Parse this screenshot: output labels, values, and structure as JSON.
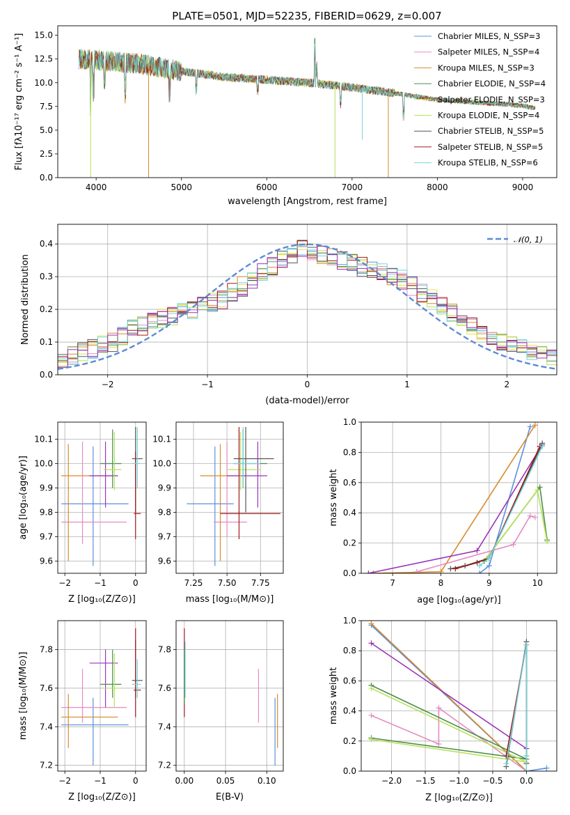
{
  "colors": {
    "chabrier_miles": "#5b8fde",
    "salpeter_miles": "#e58bc3",
    "kroupa_miles": "#d88a2c",
    "chabrier_elodie": "#4a8c4a",
    "salpeter_elodie": "#e0e24a",
    "kroupa_elodie": "#b8e05a",
    "chabrier_stelib": "#555555",
    "salpeter_stelib": "#a01818",
    "kroupa_stelib": "#6fd6da",
    "purple": "#9a33b8",
    "normal": "#5b8ad6"
  },
  "chart_data": [
    {
      "id": "spectrum",
      "type": "line",
      "title": "PLATE=0501, MJD=52235, FIBERID=0629, z=0.007",
      "xlabel": "wavelength [Angstrom, rest frame]",
      "ylabel": "Flux [fλ10⁻¹⁷ erg cm⁻² s⁻¹ A⁻¹]",
      "xlim": [
        3550,
        9400
      ],
      "ylim": [
        0,
        16
      ],
      "xticks": [
        "4000",
        "5000",
        "6000",
        "7000",
        "8000",
        "9000"
      ],
      "xtick_values": [
        4000,
        5000,
        6000,
        7000,
        8000,
        9000
      ],
      "yticks": [
        "0.0",
        "2.5",
        "5.0",
        "7.5",
        "10.0",
        "12.5",
        "15.0"
      ],
      "ytick_values": [
        0,
        2.5,
        5,
        7.5,
        10,
        12.5,
        15
      ],
      "continuum": {
        "x": [
          3800,
          4000,
          4500,
          5000,
          5500,
          6000,
          6500,
          7000,
          7500,
          8000,
          8500,
          9000,
          9150
        ],
        "y": [
          12.5,
          12.4,
          12.0,
          11.2,
          10.6,
          10.3,
          10.0,
          9.5,
          8.9,
          8.2,
          7.9,
          7.6,
          7.3
        ]
      },
      "legend": [
        "Chabrier MILES, N_SSP=3",
        "Salpeter MILES, N_SSP=4",
        "Kroupa MILES, N_SSP=3",
        "Chabrier ELODIE, N_SSP=4",
        "Salpeter ELODIE, N_SSP=3",
        "Kroupa ELODIE, N_SSP=4",
        "Chabrier STELIB, N_SSP=5",
        "Salpeter STELIB, N_SSP=5",
        "Kroupa STELIB, N_SSP=6"
      ],
      "legend_keys": [
        "chabrier_miles",
        "salpeter_miles",
        "kroupa_miles",
        "chabrier_elodie",
        "salpeter_elodie",
        "kroupa_elodie",
        "chabrier_stelib",
        "salpeter_stelib",
        "kroupa_stelib"
      ],
      "legend_placement": "top-right",
      "grid": false
    },
    {
      "id": "residuals",
      "type": "line",
      "xlabel": "(data-model)/error",
      "ylabel": "Normed distribution",
      "xlim": [
        -2.5,
        2.5
      ],
      "ylim": [
        0,
        0.46
      ],
      "xticks": [
        "−2",
        "−1",
        "0",
        "1",
        "2"
      ],
      "xtick_values": [
        -2,
        -1,
        0,
        1,
        2
      ],
      "yticks": [
        "0.0",
        "0.1",
        "0.2",
        "0.3",
        "0.4"
      ],
      "ytick_values": [
        0,
        0.1,
        0.2,
        0.3,
        0.4
      ],
      "normal_curve": {
        "name": "𝒩(0, 1)",
        "mean": 0,
        "sd": 1
      },
      "histogram_bins": {
        "start": -2.5,
        "width": 0.1
      },
      "histogram_profile": [
        0.04,
        0.06,
        0.07,
        0.08,
        0.09,
        0.1,
        0.12,
        0.14,
        0.15,
        0.16,
        0.17,
        0.18,
        0.19,
        0.2,
        0.21,
        0.22,
        0.23,
        0.25,
        0.27,
        0.29,
        0.31,
        0.33,
        0.35,
        0.37,
        0.39,
        0.38,
        0.37,
        0.36,
        0.35,
        0.34,
        0.33,
        0.32,
        0.31,
        0.3,
        0.29,
        0.27,
        0.25,
        0.23,
        0.21,
        0.19,
        0.17,
        0.15,
        0.13,
        0.11,
        0.1,
        0.09,
        0.08,
        0.07,
        0.06,
        0.05
      ],
      "grid": true,
      "legend_placement": "top-right"
    },
    {
      "id": "age_vs_Z",
      "type": "scatter",
      "xlabel": "Z [log₁₀(Z/Z⊙)]",
      "ylabel": "age  [log₁₀(age/yr)]",
      "xlim": [
        -2.2,
        0.3
      ],
      "ylim": [
        9.55,
        10.17
      ],
      "xticks": [
        "−2",
        "−1",
        "0"
      ],
      "xtick_values": [
        -2,
        -1,
        0
      ],
      "yticks": [
        "9.6",
        "9.7",
        "9.8",
        "9.9",
        "10.0",
        "10.1"
      ],
      "ytick_values": [
        9.6,
        9.7,
        9.8,
        9.9,
        10.0,
        10.1
      ],
      "points": [
        {
          "c": "chabrier_miles",
          "x": -1.2,
          "y": 9.835,
          "xe": [
            -2.1,
            -0.2
          ],
          "ye": [
            9.58,
            10.07
          ]
        },
        {
          "c": "salpeter_miles",
          "x": -1.5,
          "y": 9.76,
          "xe": [
            -2.1,
            -0.25
          ],
          "ye": [
            9.67,
            10.09
          ]
        },
        {
          "c": "kroupa_miles",
          "x": -1.9,
          "y": 9.95,
          "xe": [
            -2.1,
            -0.5
          ],
          "ye": [
            9.6,
            10.08
          ]
        },
        {
          "c": "purple",
          "x": -0.85,
          "y": 9.95,
          "xe": [
            -1.3,
            -0.5
          ],
          "ye": [
            9.82,
            10.09
          ]
        },
        {
          "c": "chabrier_elodie",
          "x": -0.65,
          "y": 10.0,
          "xe": [
            -1.0,
            -0.4
          ],
          "ye": [
            9.9,
            10.14
          ]
        },
        {
          "c": "kroupa_elodie",
          "x": -0.6,
          "y": 9.975,
          "xe": [
            -0.9,
            -0.4
          ],
          "ye": [
            9.89,
            10.13
          ]
        },
        {
          "c": "chabrier_stelib",
          "x": 0.0,
          "y": 10.02,
          "xe": [
            -0.1,
            0.2
          ],
          "ye": [
            9.8,
            10.15
          ]
        },
        {
          "c": "salpeter_stelib",
          "x": 0.0,
          "y": 9.795,
          "xe": [
            -0.05,
            0.15
          ],
          "ye": [
            9.69,
            10.05
          ]
        },
        {
          "c": "kroupa_stelib",
          "x": 0.05,
          "y": 10.0,
          "xe": [
            -0.1,
            0.15
          ],
          "ye": [
            9.9,
            10.15
          ]
        }
      ],
      "grid": true
    },
    {
      "id": "age_vs_mass",
      "type": "scatter",
      "xlabel": "mass [log₁₀(M/M⊙)]",
      "xlim": [
        7.12,
        7.92
      ],
      "ylim": [
        9.55,
        10.17
      ],
      "xticks": [
        "7.25",
        "7.50",
        "7.75"
      ],
      "xtick_values": [
        7.25,
        7.5,
        7.75
      ],
      "yticks": [
        "9.6",
        "9.7",
        "9.8",
        "9.9",
        "10.0",
        "10.1"
      ],
      "ytick_values": [
        9.6,
        9.7,
        9.8,
        9.9,
        10.0,
        10.1
      ],
      "points": [
        {
          "c": "chabrier_miles",
          "x": 7.41,
          "y": 9.835,
          "xe": [
            7.2,
            7.55
          ],
          "ye": [
            9.58,
            10.07
          ]
        },
        {
          "c": "salpeter_miles",
          "x": 7.5,
          "y": 9.76,
          "xe": [
            7.4,
            7.65
          ],
          "ye": [
            9.7,
            10.09
          ]
        },
        {
          "c": "kroupa_miles",
          "x": 7.45,
          "y": 9.95,
          "xe": [
            7.3,
            7.58
          ],
          "ye": [
            9.6,
            10.08
          ]
        },
        {
          "c": "purple",
          "x": 7.73,
          "y": 9.95,
          "xe": [
            7.5,
            7.8
          ],
          "ye": [
            9.82,
            10.09
          ]
        },
        {
          "c": "chabrier_elodie",
          "x": 7.62,
          "y": 10.0,
          "xe": [
            7.55,
            7.8
          ],
          "ye": [
            9.9,
            10.14
          ]
        },
        {
          "c": "kroupa_elodie",
          "x": 7.6,
          "y": 9.975,
          "xe": [
            7.5,
            7.75
          ],
          "ye": [
            9.89,
            10.13
          ]
        },
        {
          "c": "chabrier_stelib",
          "x": 7.64,
          "y": 10.02,
          "xe": [
            7.55,
            7.85
          ],
          "ye": [
            9.8,
            10.15
          ]
        },
        {
          "c": "salpeter_stelib",
          "x": 7.59,
          "y": 9.795,
          "xe": [
            7.45,
            7.9
          ],
          "ye": [
            9.69,
            10.15
          ]
        },
        {
          "c": "kroupa_stelib",
          "x": 7.62,
          "y": 10.0,
          "xe": [
            7.55,
            7.75
          ],
          "ye": [
            9.9,
            10.15
          ]
        }
      ],
      "grid": true
    },
    {
      "id": "weight_vs_age",
      "type": "line",
      "xlabel": "age  [log₁₀(age/yr)]",
      "ylabel": "mass weight",
      "xlim": [
        6.35,
        10.4
      ],
      "ylim": [
        0,
        1
      ],
      "xticks": [
        "7",
        "8",
        "9",
        "10"
      ],
      "xtick_values": [
        7,
        8,
        9,
        10
      ],
      "yticks": [
        "0.0",
        "0.2",
        "0.4",
        "0.6",
        "0.8",
        "1.0"
      ],
      "ytick_values": [
        0,
        0.2,
        0.4,
        0.6,
        0.8,
        1.0
      ],
      "series": [
        {
          "c": "chabrier_miles",
          "x": [
            8.8,
            9.0,
            9.85
          ],
          "y": [
            0.0,
            0.05,
            0.97
          ]
        },
        {
          "c": "kroupa_miles",
          "x": [
            6.6,
            8.0,
            9.95
          ],
          "y": [
            0.0,
            0.01,
            0.98
          ]
        },
        {
          "c": "salpeter_miles",
          "x": [
            7.5,
            9.5,
            9.85,
            9.95
          ],
          "y": [
            0.01,
            0.19,
            0.38,
            0.37
          ]
        },
        {
          "c": "purple",
          "x": [
            6.5,
            8.75,
            10.1
          ],
          "y": [
            0.0,
            0.15,
            0.85
          ]
        },
        {
          "c": "chabrier_elodie",
          "x": [
            8.9,
            10.05,
            10.2
          ],
          "y": [
            0.08,
            0.57,
            0.22
          ]
        },
        {
          "c": "kroupa_elodie",
          "x": [
            8.95,
            10.0,
            10.2
          ],
          "y": [
            0.1,
            0.55,
            0.21
          ]
        },
        {
          "c": "chabrier_stelib",
          "x": [
            8.2,
            8.5,
            9.0,
            10.1
          ],
          "y": [
            0.03,
            0.05,
            0.1,
            0.86
          ]
        },
        {
          "c": "salpeter_stelib",
          "x": [
            8.3,
            8.75,
            9.0,
            10.05
          ],
          "y": [
            0.03,
            0.07,
            0.1,
            0.84
          ]
        },
        {
          "c": "kroupa_stelib",
          "x": [
            8.8,
            9.0,
            10.1
          ],
          "y": [
            0.05,
            0.1,
            0.84
          ]
        }
      ],
      "grid": true
    },
    {
      "id": "mass_vs_Z",
      "type": "scatter",
      "xlabel": "Z [log₁₀(Z/Z⊙)]",
      "ylabel": "mass [log₁₀(M/M⊙)]",
      "xlim": [
        -2.2,
        0.3
      ],
      "ylim": [
        7.17,
        7.95
      ],
      "xticks": [
        "−2",
        "−1",
        "0"
      ],
      "xtick_values": [
        -2,
        -1,
        0
      ],
      "yticks": [
        "7.2",
        "7.4",
        "7.6",
        "7.8"
      ],
      "ytick_values": [
        7.2,
        7.4,
        7.6,
        7.8
      ],
      "points": [
        {
          "c": "chabrier_miles",
          "x": -1.2,
          "y": 7.41,
          "xe": [
            -2.1,
            -0.2
          ],
          "ye": [
            7.2,
            7.55
          ]
        },
        {
          "c": "salpeter_miles",
          "x": -1.5,
          "y": 7.5,
          "xe": [
            -2.1,
            -0.25
          ],
          "ye": [
            7.42,
            7.7
          ]
        },
        {
          "c": "kroupa_miles",
          "x": -1.9,
          "y": 7.45,
          "xe": [
            -2.1,
            -0.5
          ],
          "ye": [
            7.29,
            7.57
          ]
        },
        {
          "c": "purple",
          "x": -0.85,
          "y": 7.73,
          "xe": [
            -1.3,
            -0.5
          ],
          "ye": [
            7.5,
            7.8
          ]
        },
        {
          "c": "chabrier_elodie",
          "x": -0.65,
          "y": 7.62,
          "xe": [
            -1.0,
            -0.4
          ],
          "ye": [
            7.55,
            7.8
          ]
        },
        {
          "c": "kroupa_elodie",
          "x": -0.6,
          "y": 7.6,
          "xe": [
            -0.9,
            -0.4
          ],
          "ye": [
            7.5,
            7.78
          ]
        },
        {
          "c": "chabrier_stelib",
          "x": 0.0,
          "y": 7.64,
          "xe": [
            -0.1,
            0.2
          ],
          "ye": [
            7.55,
            7.85
          ]
        },
        {
          "c": "salpeter_stelib",
          "x": 0.0,
          "y": 7.59,
          "xe": [
            -0.05,
            0.15
          ],
          "ye": [
            7.45,
            7.91
          ]
        },
        {
          "c": "kroupa_stelib",
          "x": 0.05,
          "y": 7.62,
          "xe": [
            -0.1,
            0.15
          ],
          "ye": [
            7.55,
            7.75
          ]
        }
      ],
      "grid": true
    },
    {
      "id": "mass_vs_ebv",
      "type": "scatter",
      "xlabel": "E(B-V)",
      "xlim": [
        -0.01,
        0.12
      ],
      "ylim": [
        7.17,
        7.95
      ],
      "xticks": [
        "0.00",
        "0.05",
        "0.10"
      ],
      "xtick_values": [
        0,
        0.05,
        0.1
      ],
      "yticks": [
        "7.2",
        "7.4",
        "7.6",
        "7.8"
      ],
      "ytick_values": [
        7.2,
        7.4,
        7.6,
        7.8
      ],
      "vlines": [
        {
          "c": "salpeter_stelib",
          "x": 0.0,
          "ye": [
            7.45,
            7.91
          ]
        },
        {
          "c": "chabrier_elodie",
          "x": 0.0,
          "ye": [
            7.52,
            7.8
          ]
        },
        {
          "c": "kroupa_stelib",
          "x": 0.001,
          "ye": [
            7.55,
            7.84
          ]
        },
        {
          "c": "salpeter_miles",
          "x": 0.09,
          "ye": [
            7.42,
            7.7
          ]
        },
        {
          "c": "chabrier_miles",
          "x": 0.11,
          "ye": [
            7.2,
            7.55
          ]
        },
        {
          "c": "kroupa_miles",
          "x": 0.113,
          "ye": [
            7.29,
            7.57
          ]
        }
      ],
      "grid": true
    },
    {
      "id": "weight_vs_Z",
      "type": "line",
      "xlabel": "Z [log₁₀(Z/Z⊙)]",
      "ylabel": "mass weight",
      "xlim": [
        -2.45,
        0.45
      ],
      "ylim": [
        0,
        1
      ],
      "xticks": [
        "−2.0",
        "−1.5",
        "−1.0",
        "−0.5",
        "0.0"
      ],
      "xtick_values": [
        -2,
        -1.5,
        -1,
        -0.5,
        0
      ],
      "yticks": [
        "0.0",
        "0.2",
        "0.4",
        "0.6",
        "0.8",
        "1.0"
      ],
      "ytick_values": [
        0,
        0.2,
        0.4,
        0.6,
        0.8,
        1.0
      ],
      "series": [
        {
          "c": "chabrier_miles",
          "x": [
            -2.3,
            0.0,
            0.3
          ],
          "y": [
            0.97,
            0.0,
            0.02
          ]
        },
        {
          "c": "kroupa_miles",
          "x": [
            -2.3,
            0.0
          ],
          "y": [
            0.98,
            0.0
          ]
        },
        {
          "c": "purple",
          "x": [
            -2.3,
            0.0
          ],
          "y": [
            0.85,
            0.15
          ]
        },
        {
          "c": "salpeter_miles",
          "x": [
            -2.3,
            -1.3,
            -1.3,
            0.0
          ],
          "y": [
            0.37,
            0.18,
            0.42,
            0.0
          ]
        },
        {
          "c": "chabrier_elodie",
          "x": [
            -2.3,
            0.0,
            -2.3
          ],
          "y": [
            0.57,
            0.08,
            0.22
          ]
        },
        {
          "c": "kroupa_elodie",
          "x": [
            -2.3,
            0.0,
            -2.3
          ],
          "y": [
            0.55,
            0.06,
            0.21
          ]
        },
        {
          "c": "chabrier_stelib",
          "x": [
            -0.3,
            0.0,
            0.0
          ],
          "y": [
            0.03,
            0.86,
            0.1
          ]
        },
        {
          "c": "salpeter_stelib",
          "x": [
            -0.3,
            0.0,
            0.0
          ],
          "y": [
            0.1,
            0.84,
            0.05
          ]
        },
        {
          "c": "kroupa_stelib",
          "x": [
            -0.3,
            0.0,
            0.0,
            0.0
          ],
          "y": [
            0.05,
            0.84,
            0.0,
            0.1
          ]
        }
      ],
      "grid": true
    }
  ]
}
